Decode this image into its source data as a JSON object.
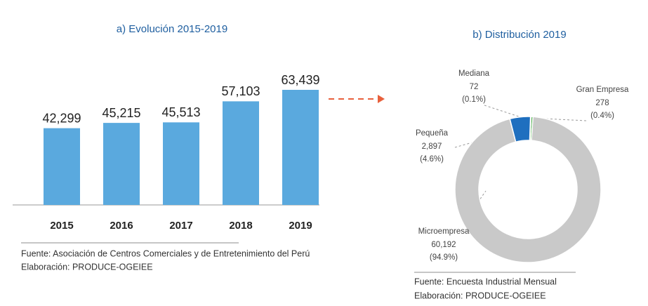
{
  "chart_data": [
    {
      "type": "bar",
      "title": "a) Evolución 2015-2019",
      "categories": [
        "2015",
        "2016",
        "2017",
        "2018",
        "2019"
      ],
      "values": [
        42299,
        45215,
        45513,
        57103,
        63439
      ],
      "value_labels": [
        "42,299",
        "45,215",
        "45,513",
        "57,103",
        "63,439"
      ],
      "color": "#5aa9de",
      "source": "Fuente: Asociación de Centros Comerciales y de Entretenimiento del Perú",
      "credit": "Elaboración: PRODUCE-OGEIEE"
    },
    {
      "type": "donut",
      "title": "b) Distribución 2019",
      "categories": [
        "Gran Empresa",
        "Mediana",
        "Pequeña",
        "Microempresa"
      ],
      "values": [
        278,
        72,
        2897,
        60192
      ],
      "value_labels": [
        "278",
        "72",
        "2,897",
        "60,192"
      ],
      "shares": [
        0.4,
        0.1,
        4.6,
        94.9
      ],
      "share_labels": [
        "(0.4%)",
        "(0.1%)",
        "(4.6%)",
        "(94.9%)"
      ],
      "colors": [
        "#4cae4c",
        "#f2e27a",
        "#1f6fbf",
        "#c9c9c9"
      ],
      "source": "Fuente: Encuesta Industrial Mensual",
      "credit": "Elaboración: PRODUCE-OGEIEE"
    }
  ]
}
